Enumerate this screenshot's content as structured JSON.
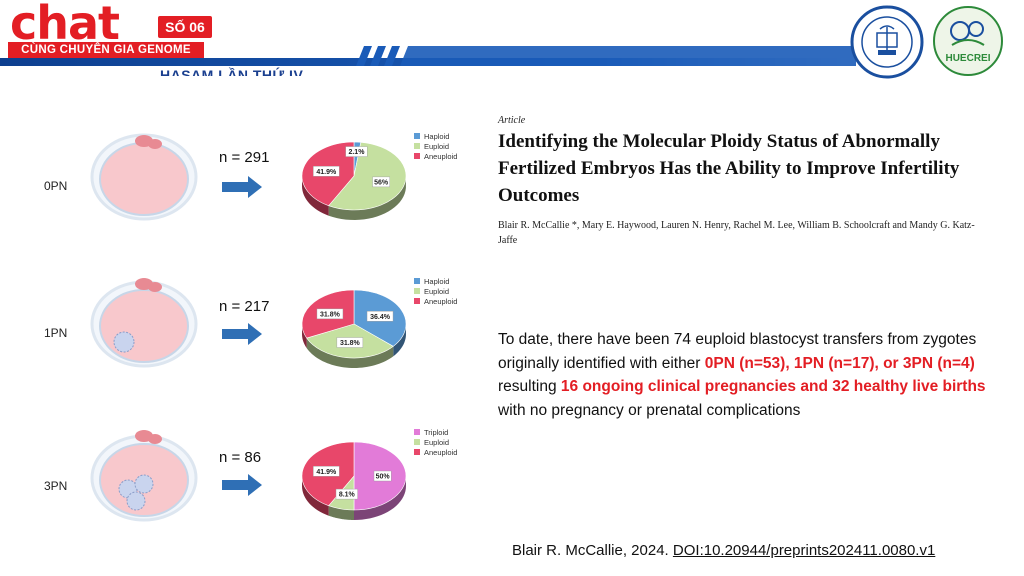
{
  "header": {
    "logo_word": "chat",
    "logo_issue": "SỐ 06",
    "logo_tagline": "CÙNG CHUYÊN GIA GENOME",
    "event_title": "HASAM LẦN THỨ IV",
    "right_logo_2_text": "HUECREI"
  },
  "rows": [
    {
      "label": "0PN",
      "n_text": "n = 291"
    },
    {
      "label": "1PN",
      "n_text": "n = 217"
    },
    {
      "label": "3PN",
      "n_text": "n = 86"
    }
  ],
  "colors": {
    "haploid": "#5b9bd5",
    "euploid": "#c5e0a0",
    "aneuploid": "#e8476a",
    "triploid": "#e27bd8",
    "brand_red": "#e31e24",
    "brand_blue": "#1a4f9f"
  },
  "chart_data": [
    {
      "type": "pie",
      "categories": [
        "Haploid",
        "Euploid",
        "Aneuploid"
      ],
      "values": [
        2.1,
        56,
        41.9
      ],
      "labels": [
        "2.1%",
        "56%",
        "41.9%"
      ],
      "colors": [
        "#5b9bd5",
        "#c5e0a0",
        "#e8476a"
      ],
      "legend": "top-right"
    },
    {
      "type": "pie",
      "categories": [
        "Haploid",
        "Euploid",
        "Aneuploid"
      ],
      "values": [
        36.4,
        31.8,
        31.8
      ],
      "labels": [
        "36.4%",
        "31.8%",
        "31.8%"
      ],
      "colors": [
        "#5b9bd5",
        "#c5e0a0",
        "#e8476a"
      ],
      "legend": "top-right"
    },
    {
      "type": "pie",
      "categories": [
        "Triploid",
        "Euploid",
        "Aneuploid"
      ],
      "values": [
        50,
        8.1,
        41.9
      ],
      "labels": [
        "50%",
        "8.1%",
        "41.9%"
      ],
      "colors": [
        "#e27bd8",
        "#c5e0a0",
        "#e8476a"
      ],
      "legend": "top-right"
    }
  ],
  "article": {
    "kicker": "Article",
    "title": "Identifying the Molecular Ploidy Status of Abnormally Fertilized Embryos Has the Ability to Improve Infertility Outcomes",
    "authors": "Blair R. McCallie *, Mary E. Haywood, Lauren N. Henry, Rachel M. Lee, William B. Schoolcraft and Mandy G. Katz-Jaffe"
  },
  "summary": {
    "part1": "To date, there have been 74 euploid blastocyst transfers from zygotes originally identified with either ",
    "hl1": "0PN (n=53), 1PN (n=17), or 3PN (n=4)",
    "part2": " resulting ",
    "hl2": "16 ongoing clinical pregnancies and 32 healthy live births",
    "part3": " with no pregnancy or prenatal complications"
  },
  "citation": {
    "prefix": "Blair R. McCallie, 2024. ",
    "doi": "DOI:10.20944/preprints202411.0080.v1"
  }
}
